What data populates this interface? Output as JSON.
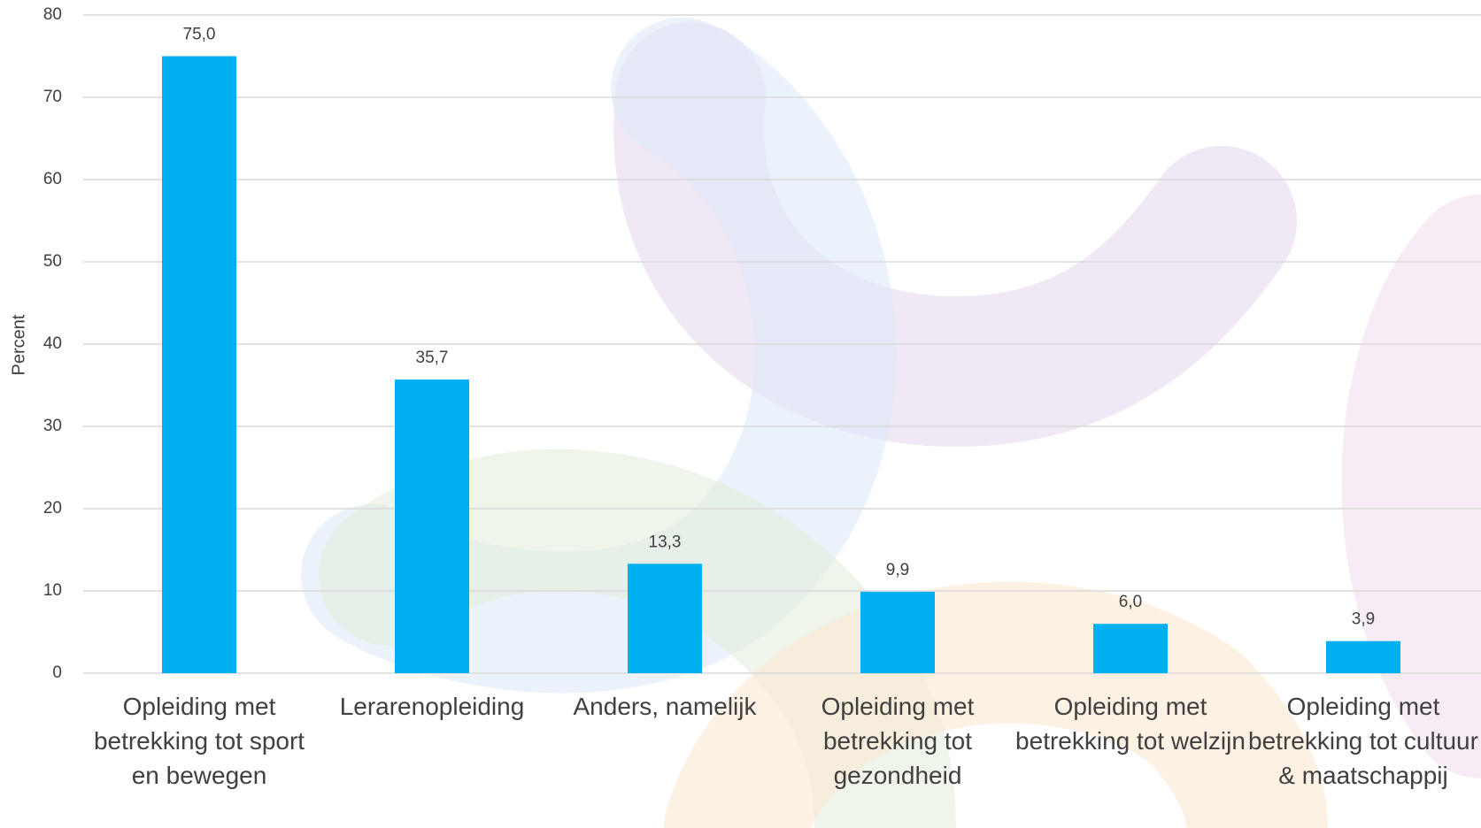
{
  "chart_data": {
    "type": "bar",
    "y_label": "Percent",
    "categories": [
      "Opleiding met betrekking tot sport en bewegen",
      "Lerarenopleiding",
      "Anders, namelijk",
      "Opleiding met betrekking tot gezondheid",
      "Opleiding met betrekking tot welzijn",
      "Opleiding met betrekking tot cultuur & maatschappij"
    ],
    "values": [
      75.0,
      35.7,
      13.3,
      9.9,
      6.0,
      3.9
    ],
    "value_labels": [
      "75,0",
      "35,7",
      "13,3",
      "9,9",
      "6,0",
      "3,9"
    ],
    "color": "#00b0f0",
    "ylim": [
      0,
      80
    ],
    "yticks": [
      0,
      10,
      20,
      30,
      40,
      50,
      60,
      70,
      80
    ],
    "grid": true
  }
}
